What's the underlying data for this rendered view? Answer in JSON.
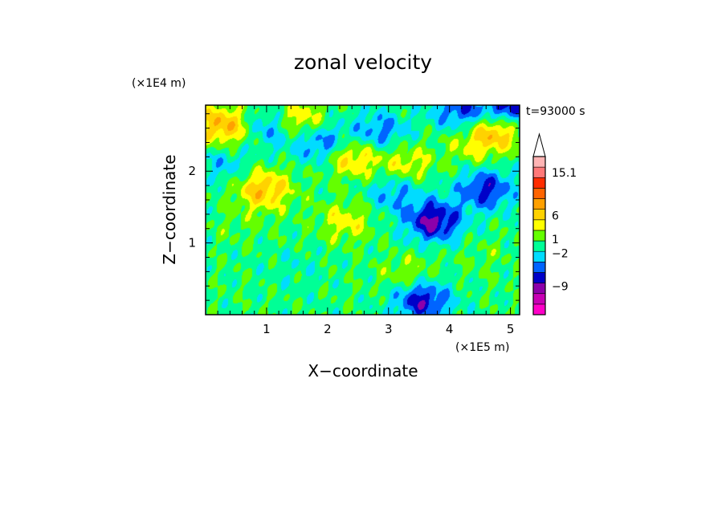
{
  "chart_data": {
    "type": "heatmap",
    "title": "zonal velocity",
    "xlabel": "X−coordinate",
    "ylabel": "Z−coordinate",
    "x_unit": "(×1E5 m)",
    "y_unit": "(×1E4 m)",
    "time_label": "t=93000 s",
    "xlim": [
      0.0,
      5.15
    ],
    "ylim": [
      0.0,
      2.92
    ],
    "xticks": [
      1,
      2,
      3,
      4,
      5
    ],
    "yticks": [
      1,
      2
    ],
    "colorbar": {
      "labels": [
        {
          "value": -9,
          "text": "−9"
        },
        {
          "value": -2,
          "text": "−2"
        },
        {
          "value": 1,
          "text": "1"
        },
        {
          "value": 6,
          "text": "6"
        },
        {
          "value": 15.1,
          "text": "15.1"
        }
      ],
      "colors": [
        "#ff00c8",
        "#c800b4",
        "#8c00aa",
        "#0000c8",
        "#0064ff",
        "#00dcff",
        "#00ff96",
        "#64ff00",
        "#ffff00",
        "#ffd200",
        "#ffa000",
        "#ff6400",
        "#ff2d00",
        "#ff7878",
        "#ffb4b4"
      ]
    },
    "fields": [
      {
        "x": 0.25,
        "z": 2.65,
        "u": 7
      },
      {
        "x": 0.75,
        "z": 2.55,
        "u": 3
      },
      {
        "x": 1.5,
        "z": 2.7,
        "u": 6
      },
      {
        "x": 2.4,
        "z": 2.2,
        "u": 6
      },
      {
        "x": 3.3,
        "z": 2.1,
        "u": 4
      },
      {
        "x": 4.8,
        "z": 2.6,
        "u": 8
      },
      {
        "x": 1.0,
        "z": 2.6,
        "u": -7
      },
      {
        "x": 1.9,
        "z": 2.4,
        "u": -6
      },
      {
        "x": 2.85,
        "z": 2.55,
        "u": -5
      },
      {
        "x": 4.2,
        "z": 2.85,
        "u": -6
      },
      {
        "x": 5.0,
        "z": 2.85,
        "u": -9
      },
      {
        "x": 3.1,
        "z": 1.7,
        "u": -4
      },
      {
        "x": 3.75,
        "z": 1.3,
        "u": -9
      },
      {
        "x": 4.6,
        "z": 1.75,
        "u": -7
      },
      {
        "x": 0.95,
        "z": 1.75,
        "u": 7
      },
      {
        "x": 2.3,
        "z": 1.3,
        "u": 4
      },
      {
        "x": 0.5,
        "z": 1.25,
        "u": 1
      },
      {
        "x": 1.5,
        "z": 0.65,
        "u": -1
      },
      {
        "x": 3.35,
        "z": 0.55,
        "u": 3
      },
      {
        "x": 4.6,
        "z": 0.8,
        "u": 1
      },
      {
        "x": 3.55,
        "z": 0.2,
        "u": -8
      },
      {
        "x": 0.35,
        "z": 2.1,
        "u": -3
      },
      {
        "x": 4.4,
        "z": 2.35,
        "u": 3
      }
    ]
  }
}
